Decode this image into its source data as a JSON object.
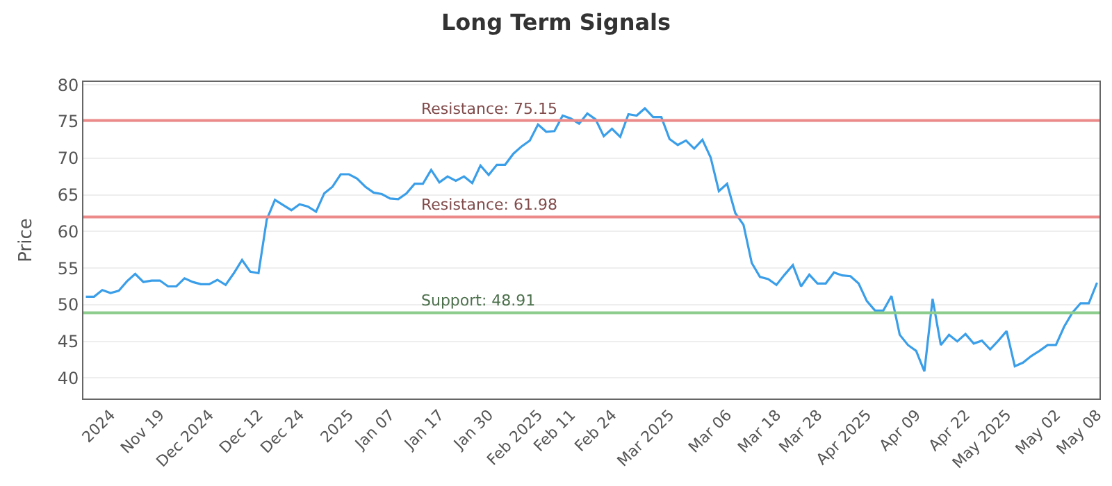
{
  "chart_data": {
    "type": "line",
    "title": "Long Term Signals",
    "ylabel": "Price",
    "categories": [
      null,
      null,
      null,
      "2024",
      null,
      null,
      null,
      null,
      null,
      "Nov 19",
      null,
      null,
      null,
      null,
      null,
      "Dec 2024",
      null,
      null,
      null,
      null,
      null,
      "Dec 12",
      null,
      null,
      null,
      null,
      "Dec 24",
      null,
      null,
      null,
      null,
      null,
      "2025",
      null,
      null,
      null,
      null,
      "Jan 07",
      null,
      null,
      null,
      null,
      null,
      "Jan 17",
      null,
      null,
      null,
      null,
      null,
      "Jan 30",
      null,
      null,
      null,
      null,
      null,
      "Feb 2025",
      null,
      null,
      null,
      "Feb 11",
      null,
      null,
      null,
      null,
      "Feb 24",
      null,
      null,
      null,
      null,
      null,
      null,
      "Mar 2025",
      null,
      null,
      null,
      null,
      null,
      null,
      "Mar 06",
      null,
      null,
      null,
      null,
      null,
      "Mar 18",
      null,
      null,
      null,
      null,
      "Mar 28",
      null,
      null,
      null,
      null,
      null,
      "Apr 2025",
      null,
      null,
      null,
      null,
      null,
      "Apr 09",
      null,
      null,
      null,
      null,
      null,
      "Apr 22",
      null,
      null,
      null,
      null,
      "May 2025",
      null,
      null,
      null,
      null,
      null,
      "May 02",
      null,
      null,
      null,
      null,
      "May 08"
    ],
    "series": [
      {
        "color": "#3a9ee8",
        "values": [
          51.1,
          51.1,
          52,
          51.6,
          51.9,
          53.2,
          54.2,
          53.1,
          53.3,
          53.3,
          52.5,
          52.5,
          53.6,
          53.1,
          52.8,
          52.8,
          53.4,
          52.7,
          54.3,
          56.1,
          54.5,
          54.3,
          61.6,
          64.3,
          63.6,
          62.9,
          63.7,
          63.4,
          62.7,
          65.2,
          66.1,
          67.8,
          67.8,
          67.2,
          66.1,
          65.3,
          65.1,
          64.5,
          64.4,
          65.2,
          66.5,
          66.5,
          68.4,
          66.7,
          67.5,
          66.9,
          67.5,
          66.6,
          69,
          67.7,
          69.1,
          69.1,
          70.6,
          71.6,
          72.4,
          74.6,
          73.6,
          73.7,
          75.8,
          75.4,
          74.7,
          76.1,
          75.3,
          73,
          74,
          72.9,
          76,
          75.8,
          76.8,
          75.6,
          75.6,
          72.6,
          71.8,
          72.4,
          71.3,
          72.5,
          70.1,
          65.5,
          66.5,
          62.5,
          60.9,
          55.7,
          53.8,
          53.5,
          52.7,
          54.1,
          55.4,
          52.5,
          54.1,
          52.9,
          52.9,
          54.4,
          54.0,
          53.9,
          52.9,
          50.5,
          49.2,
          49.2,
          51.2,
          45.9,
          44.5,
          43.7,
          40.9,
          50.8,
          44.5,
          45.9,
          45,
          46,
          44.7,
          45.1,
          43.9,
          45.1,
          46.4,
          41.6,
          42.1,
          43,
          43.7,
          44.5,
          44.5,
          47,
          48.9,
          50.2,
          50.2,
          53
        ]
      }
    ],
    "ylim": [
      37.2,
      80.4
    ],
    "yticks": [
      40,
      45,
      50,
      55,
      60,
      65,
      70,
      75,
      80
    ],
    "grid": "y",
    "marker": "none",
    "line_style": "solid",
    "ref_lines": [
      {
        "axis": "y",
        "value": 75.15,
        "label": "Resistance: 75.15",
        "color": "#ec8a8a"
      },
      {
        "axis": "y",
        "value": 61.98,
        "label": "Resistance: 61.98",
        "color": "#ec8a8a"
      },
      {
        "axis": "y",
        "value": 48.91,
        "label": "Support: 48.91",
        "color": "#8ccc8c"
      }
    ]
  }
}
